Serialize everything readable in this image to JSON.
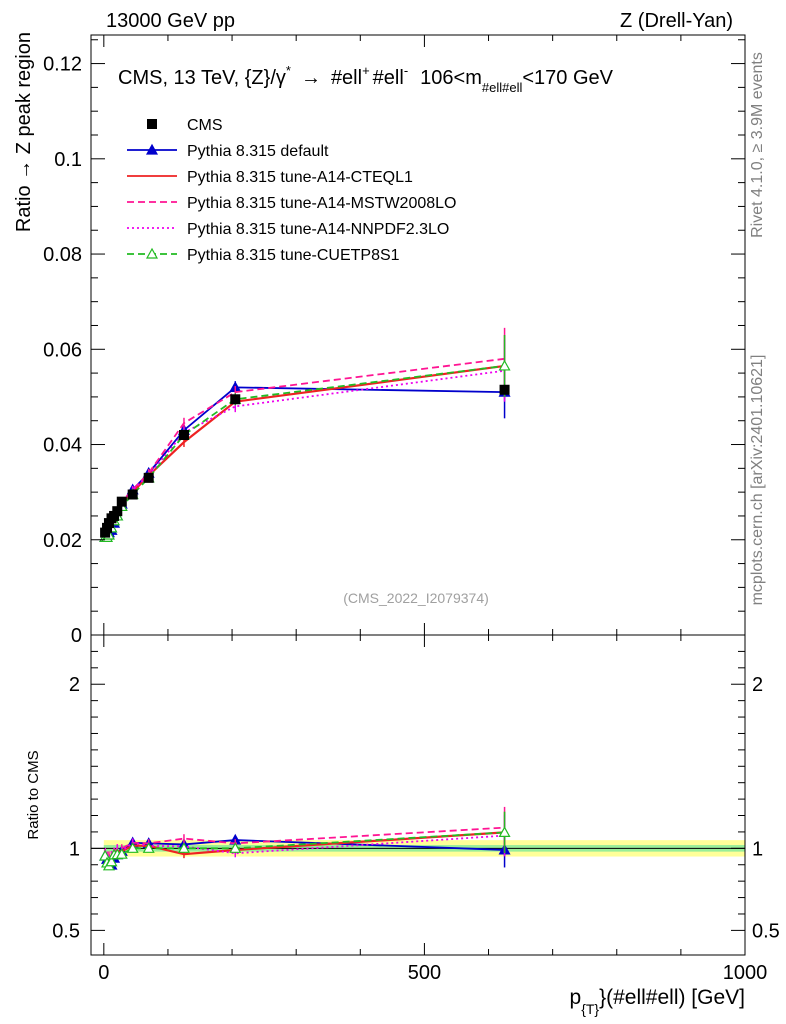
{
  "header": {
    "left": "13000 GeV pp",
    "right": "Z (Drell-Yan)"
  },
  "side": {
    "rivet": "Rivet 4.1.0, ≥ 3.9M events",
    "mcplots": "mcplots.cern.ch [arXiv:2401.10621]"
  },
  "watermark": "(CMS_2022_I2079374)",
  "chart_data": {
    "type": "line",
    "title_parts": {
      "pre": "CMS, 13 TeV, {Z}/γ",
      "star": "*",
      "arrow": "→",
      "ell1": "#ell",
      "plus": "+",
      "ell2": "#ell",
      "minus": "-",
      "range_pre": "106<m",
      "range_sub": "#ell#ell",
      "range_post": "<170 GeV"
    },
    "ylabel": "Ratio → Z peak region",
    "ratio_ylabel": "Ratio to CMS",
    "xlabel_pre": "p",
    "xlabel_sub": "{T}",
    "xlabel_post": "}(#ell#ell) [GeV]",
    "xlim": [
      -20,
      1000
    ],
    "ylim": [
      0,
      0.126
    ],
    "ratio_ylim": [
      0.35,
      2.3
    ],
    "x_ticks": [
      0,
      500,
      1000
    ],
    "x_tick_labels": [
      "0",
      "500",
      "1000"
    ],
    "y_ticks": [
      0,
      0.02,
      0.04,
      0.06,
      0.08,
      0.1,
      0.12
    ],
    "y_tick_labels": [
      "0",
      "0.02",
      "0.04",
      "0.06",
      "0.08",
      "0.1",
      "0.12"
    ],
    "ratio_ticks": [
      0.5,
      1,
      2
    ],
    "ratio_tick_labels": [
      "0.5",
      "1",
      "2"
    ],
    "x": [
      2,
      5,
      8,
      12,
      16,
      21,
      28,
      45,
      70,
      125,
      205,
      625
    ],
    "legend": [
      "CMS",
      "Pythia 8.315 default",
      "Pythia 8.315 tune-A14-CTEQL1",
      "Pythia 8.315 tune-A14-MSTW2008LO",
      "Pythia 8.315 tune-A14-NNPDF2.3LO",
      "Pythia 8.315 tune-CUETP8S1"
    ],
    "data": {
      "name": "CMS",
      "values": [
        0.0215,
        0.0225,
        0.0235,
        0.0245,
        0.025,
        0.026,
        0.028,
        0.0295,
        0.033,
        0.042,
        0.0495,
        0.0515
      ],
      "band_stat": 0.02,
      "band_total": 0.05
    },
    "series": [
      {
        "name": "Pythia 8.315 default",
        "color": "#0000cc",
        "style": "solid",
        "marker": "triangle",
        "values": [
          0.0205,
          0.021,
          0.0215,
          0.022,
          0.0235,
          0.025,
          0.0275,
          0.0305,
          0.034,
          0.043,
          0.052,
          0.051
        ],
        "err": 0.0055
      },
      {
        "name": "Pythia 8.315 tune-A14-CTEQL1",
        "color": "#ee2222",
        "style": "solid",
        "marker": "none",
        "values": [
          0.021,
          0.0215,
          0.022,
          0.023,
          0.024,
          0.0255,
          0.0275,
          0.03,
          0.0335,
          0.0405,
          0.049,
          0.0565
        ],
        "err": 0.0065
      },
      {
        "name": "Pythia 8.315 tune-A14-MSTW2008LO",
        "color": "#ff1493",
        "style": "dashed",
        "marker": "none",
        "values": [
          0.021,
          0.0215,
          0.0225,
          0.0235,
          0.0245,
          0.026,
          0.028,
          0.0305,
          0.034,
          0.0445,
          0.051,
          0.058
        ],
        "err": 0.0065
      },
      {
        "name": "Pythia 8.315 tune-A14-NNPDF2.3LO",
        "color": "#ee00ee",
        "style": "dotted",
        "marker": "none",
        "values": [
          0.021,
          0.0215,
          0.022,
          0.0235,
          0.0245,
          0.026,
          0.0275,
          0.0305,
          0.0335,
          0.0425,
          0.048,
          0.0555
        ],
        "err": 0.0065
      },
      {
        "name": "Pythia 8.315 tune-CUETP8S1",
        "color": "#22bb22",
        "style": "dashed",
        "marker": "open-triangle",
        "values": [
          0.0205,
          0.0205,
          0.021,
          0.0225,
          0.024,
          0.025,
          0.027,
          0.0295,
          0.033,
          0.042,
          0.0495,
          0.0565
        ],
        "err": 0.0065
      }
    ]
  }
}
